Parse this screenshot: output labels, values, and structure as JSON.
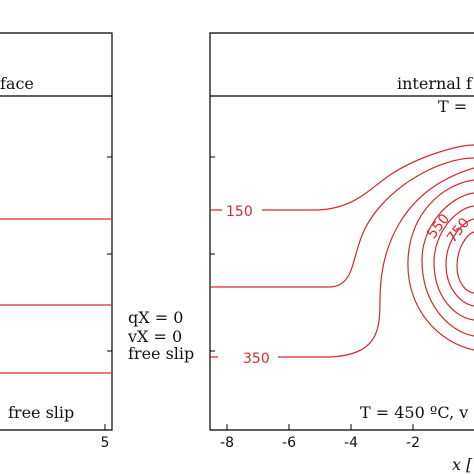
{
  "left_panel": {
    "interface_label": "face",
    "bottom_label": "free slip",
    "x_ticks": [
      "5"
    ]
  },
  "middle_bc": {
    "line1": "qX = 0",
    "line2": "vX = 0",
    "line3": "free slip"
  },
  "right_panel": {
    "interface_label": "internal f",
    "top_temperature": "T =",
    "bottom_label": "T = 450 ºC, v",
    "x_axis_label": "x [",
    "x_ticks": [
      "-8",
      "-6",
      "-4",
      "-2"
    ],
    "contour_labels": [
      "150",
      "350",
      "550",
      "750"
    ]
  },
  "colors": {
    "isotherm": "#d42a2a",
    "frame": "#000000"
  }
}
